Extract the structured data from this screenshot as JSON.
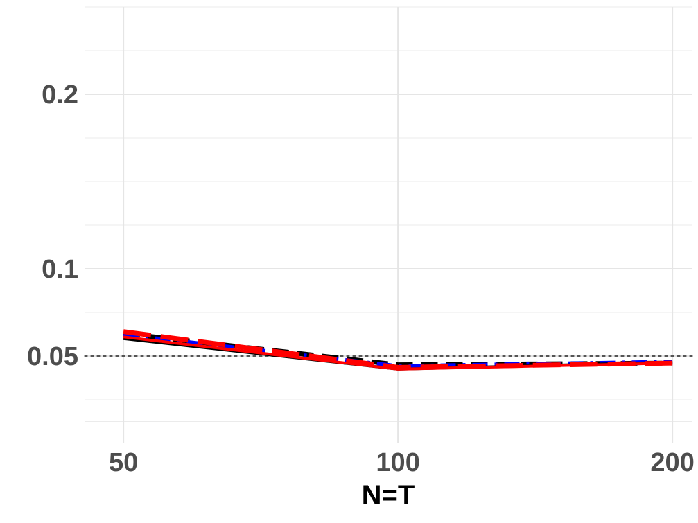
{
  "chart_data": {
    "type": "line",
    "title": "",
    "xlabel": "N=T",
    "ylabel": "",
    "x": [
      50,
      100,
      200
    ],
    "x_tick_labels": [
      "50",
      "100",
      "200"
    ],
    "x_scale": "log",
    "xlim": [
      45.4,
      210
    ],
    "y_ticks": [
      0.05,
      0.1,
      0.2
    ],
    "y_tick_labels": [
      "0.05",
      "0.1",
      "0.2"
    ],
    "ylim": [
      0.0,
      0.25
    ],
    "grid": true,
    "reference_line": {
      "y": 0.05,
      "style": "dotted",
      "color": "#555555"
    },
    "series": [
      {
        "values": [
          0.063,
          0.045,
          0.046
        ],
        "color": "#000000",
        "dash": "dashed"
      },
      {
        "values": [
          0.062,
          0.044,
          0.0465
        ],
        "color": "#0000ff",
        "dash": "dashdot"
      },
      {
        "values": [
          0.06,
          0.0425,
          0.0465
        ],
        "color": "#000000",
        "dash": "solid"
      },
      {
        "values": [
          0.064,
          0.0435,
          0.046
        ],
        "color": "#ff0000",
        "dash": "longdash"
      },
      {
        "values": [
          0.061,
          0.0425,
          0.046
        ],
        "color": "#ff0000",
        "dash": "solid"
      }
    ]
  }
}
